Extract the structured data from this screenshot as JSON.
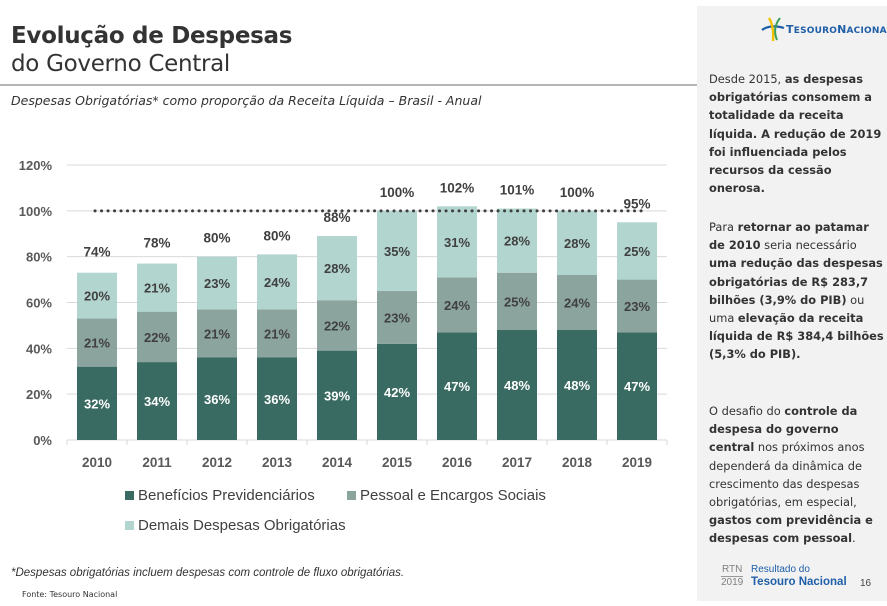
{
  "header": {
    "title_line1": "Evolução de Despesas",
    "title_line2": "do Governo Central",
    "subtitle": "Despesas Obrigatórias* como proporção da Receita Líquida – Brasil - Anual"
  },
  "colors": {
    "beneficios": "#3a6b62",
    "pessoal": "#8ca49e",
    "demais": "#b3d5cf",
    "axis_text": "#595959",
    "label_dark": "#404040",
    "brand_blue": "#1f5ea8"
  },
  "chart_data": {
    "type": "bar",
    "stacked": true,
    "categories": [
      "2010",
      "2011",
      "2012",
      "2013",
      "2014",
      "2015",
      "2016",
      "2017",
      "2018",
      "2019"
    ],
    "series": [
      {
        "name": "Benefícios Previdenciários",
        "values": [
          32,
          34,
          36,
          36,
          39,
          42,
          47,
          48,
          48,
          47
        ],
        "labels": [
          "32%",
          "34%",
          "36%",
          "36%",
          "39%",
          "42%",
          "47%",
          "48%",
          "48%",
          "47%"
        ]
      },
      {
        "name": "Pessoal e Encargos Sociais",
        "values": [
          21,
          22,
          21,
          21,
          22,
          23,
          24,
          25,
          24,
          23
        ],
        "labels": [
          "21%",
          "22%",
          "21%",
          "21%",
          "22%",
          "23%",
          "24%",
          "25%",
          "24%",
          "23%"
        ]
      },
      {
        "name": "Demais Despesas Obrigatórias",
        "values": [
          20,
          21,
          23,
          24,
          28,
          35,
          31,
          28,
          28,
          25
        ],
        "labels": [
          "20%",
          "21%",
          "23%",
          "24%",
          "28%",
          "35%",
          "31%",
          "28%",
          "28%",
          "25%"
        ]
      }
    ],
    "totals": [
      74,
      78,
      80,
      80,
      88,
      100,
      102,
      101,
      100,
      95
    ],
    "total_labels": [
      "74%",
      "78%",
      "80%",
      "80%",
      "88%",
      "100%",
      "102%",
      "101%",
      "100%",
      "95%"
    ],
    "reference_line": {
      "value": 100,
      "style": "dotted"
    },
    "yticks": [
      0,
      20,
      40,
      60,
      80,
      100,
      120
    ],
    "ytick_labels": [
      "0%",
      "20%",
      "40%",
      "60%",
      "80%",
      "100%",
      "120%"
    ],
    "ylim": [
      0,
      120
    ],
    "grid": true,
    "legend_position": "bottom",
    "title": "Despesas Obrigatórias* como proporção da Receita Líquida – Brasil - Anual",
    "xlabel": "",
    "ylabel": ""
  },
  "legend": {
    "items": [
      {
        "label": "Benefícios Previdenciários"
      },
      {
        "label": "Pessoal e Encargos Sociais"
      },
      {
        "label": "Demais Despesas Obrigatórias"
      }
    ]
  },
  "footer": {
    "footnote": "*Despesas obrigatórias incluem despesas com controle de fluxo obrigatórias.",
    "source": "Fonte: Tesouro Nacional"
  },
  "side": {
    "logo_text_1": "T",
    "logo_text_2": "ESOURO",
    "logo_text_3": "N",
    "logo_text_4": "ACIONAL",
    "p1": [
      {
        "t": "Desde 2015, ",
        "b": false
      },
      {
        "t": "as despesas obrigatórias consomem a totalidade da receita líquida. A redução de 2019 foi influenciada pelos recursos da cessão onerosa.",
        "b": true
      }
    ],
    "p2": [
      {
        "t": "Para ",
        "b": false
      },
      {
        "t": "retornar ao patamar de 2010",
        "b": true
      },
      {
        "t": " seria necessário ",
        "b": false
      },
      {
        "t": "uma redução das despesas obrigatórias de R$ 283,7 bilhões (3,9% do PIB)",
        "b": true
      },
      {
        "t": " ou uma ",
        "b": false
      },
      {
        "t": "elevação da receita líquida de R$ 384,4 bilhões (5,3% do PIB).",
        "b": true
      }
    ],
    "p3": [
      {
        "t": "O desafio do ",
        "b": false
      },
      {
        "t": "controle da despesa do governo central",
        "b": true
      },
      {
        "t": " nos próximos anos dependerá da dinâmica de crescimento das despesas obrigatórias, em especial, ",
        "b": false
      },
      {
        "t": "gastos com previdência e despesas com pessoal",
        "b": true
      },
      {
        "t": ".",
        "b": false
      }
    ],
    "rtn_label": "RTN",
    "rtn_year": "2019",
    "brand_line1": "Resultado do",
    "brand_line2": "Tesouro Nacional",
    "page_number": "16"
  }
}
